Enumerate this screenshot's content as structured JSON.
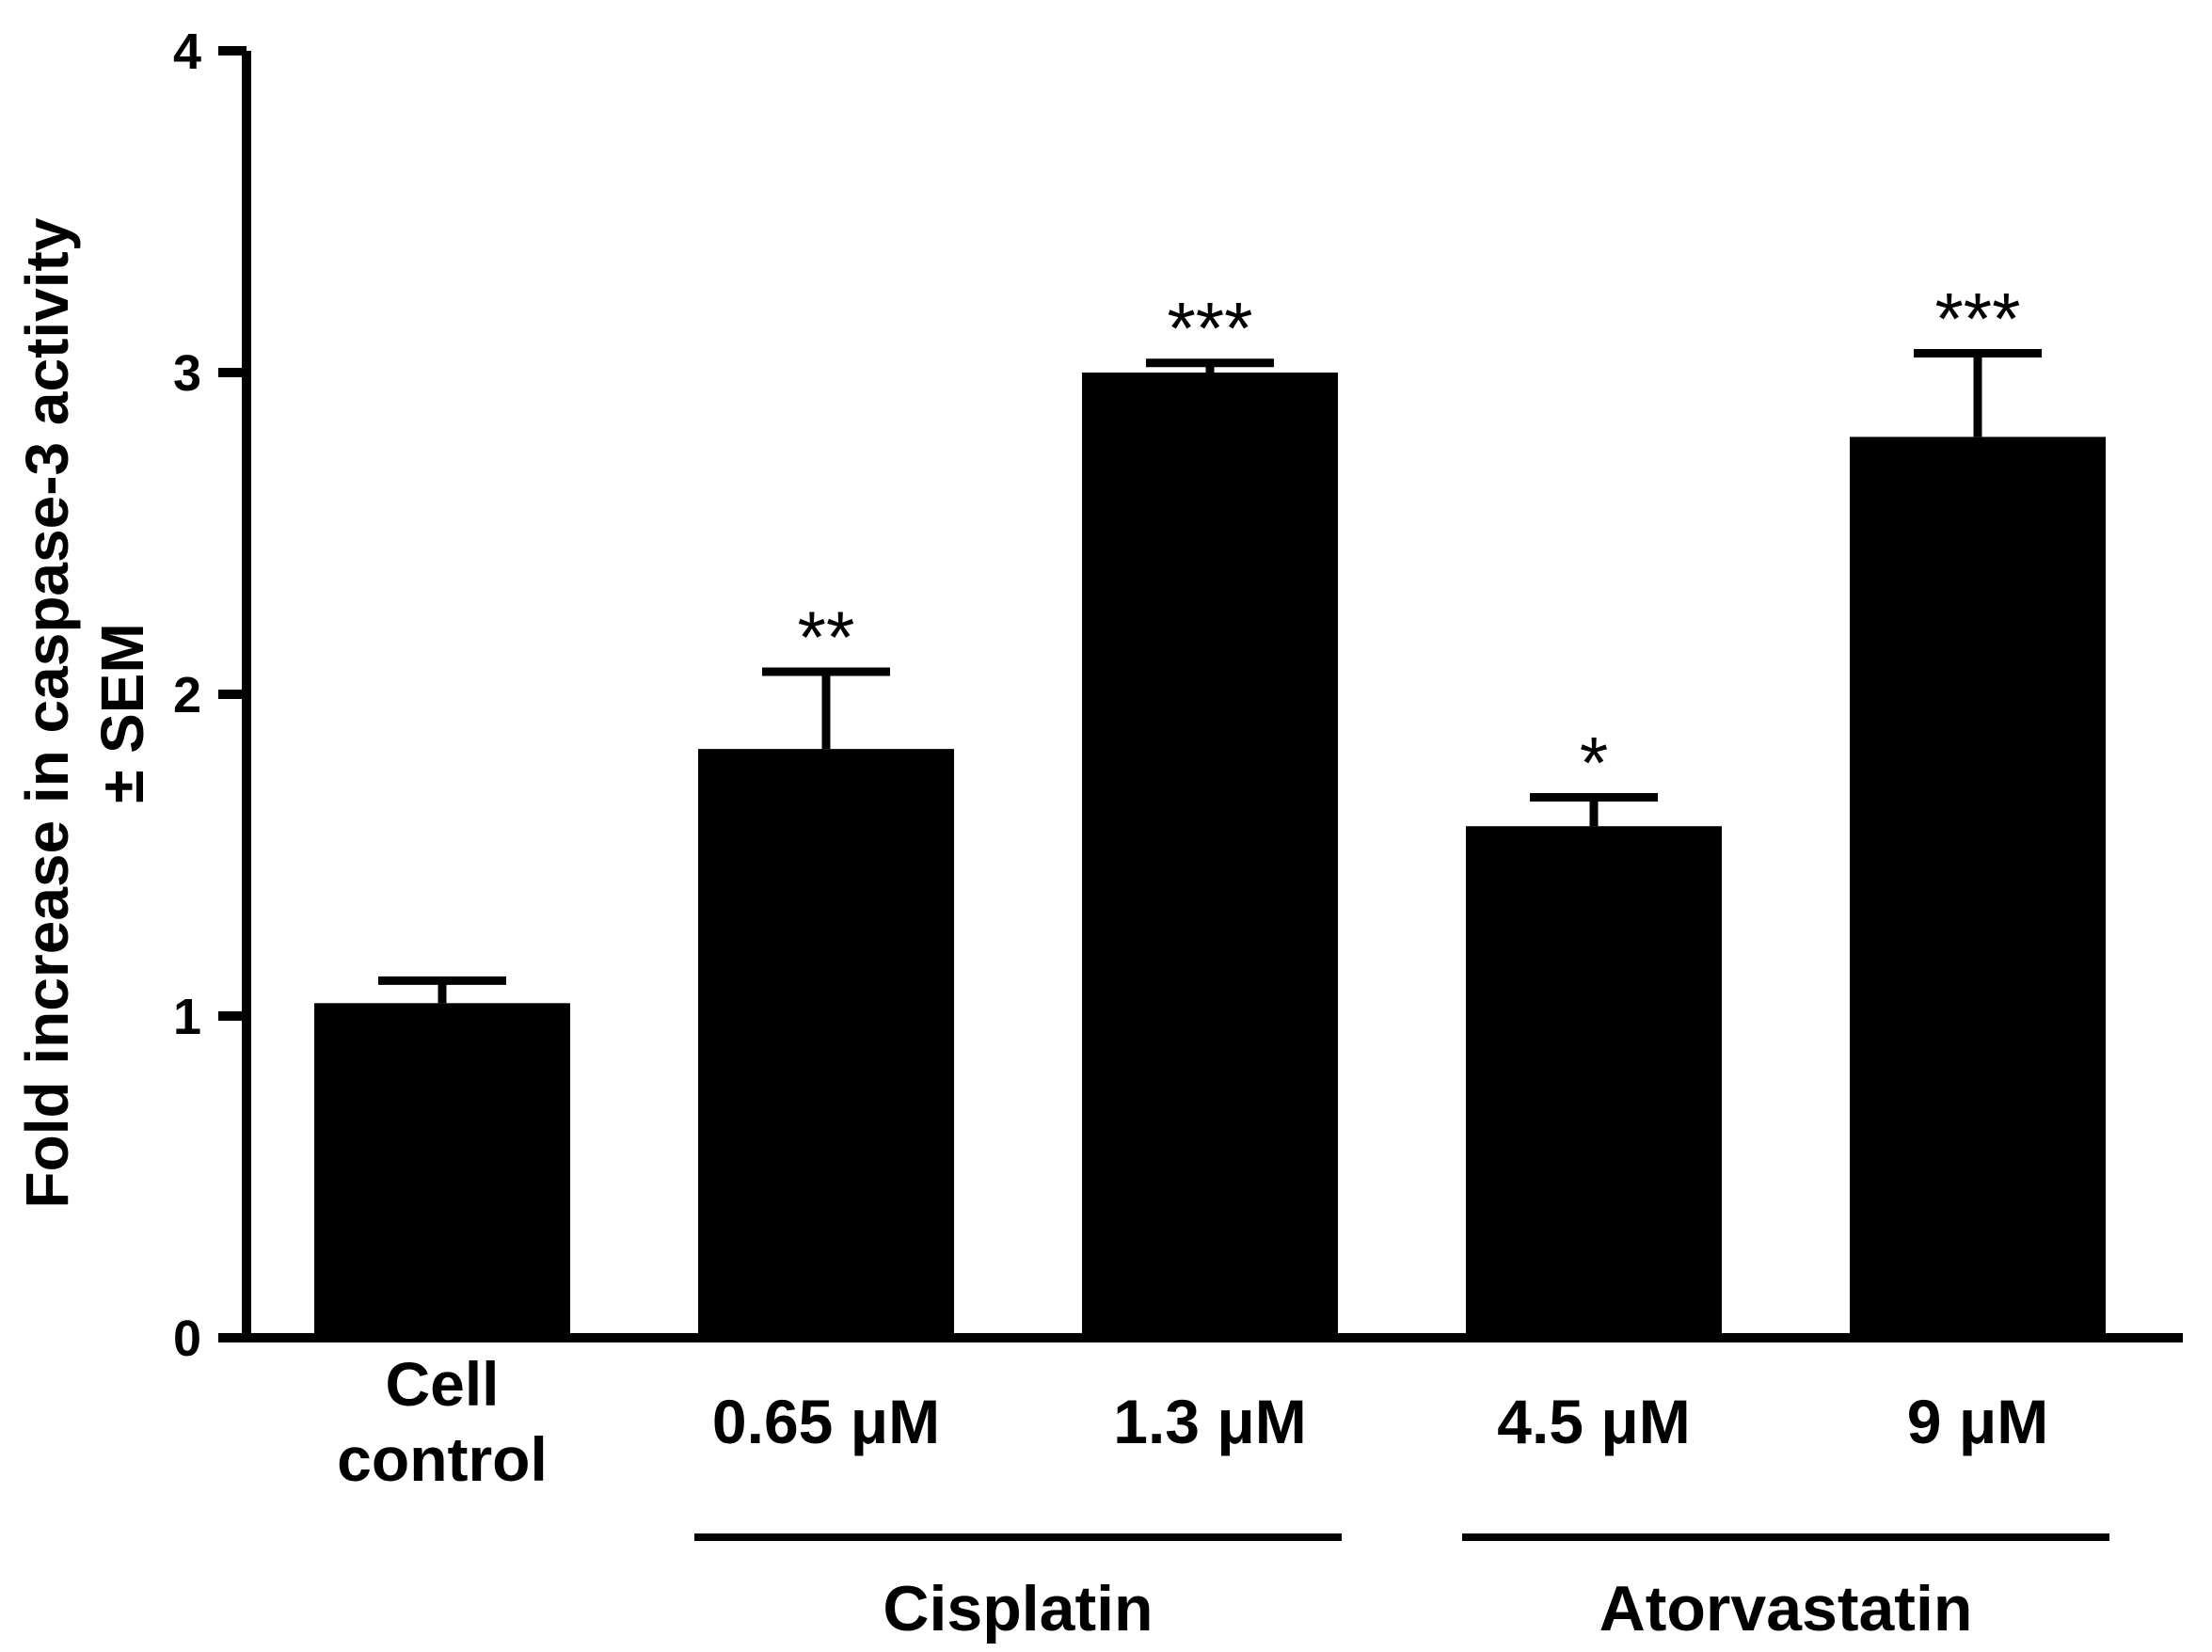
{
  "chart_data": {
    "type": "bar",
    "title": "",
    "xlabel": "",
    "ylabel_lines": [
      "Fold increase in caspase-3 activity",
      "± SEM"
    ],
    "ylim": [
      0,
      4
    ],
    "yticks": [
      0,
      1,
      2,
      3,
      4
    ],
    "grid": false,
    "legend": "none",
    "categories": [
      {
        "lines": [
          "Cell",
          "control"
        ]
      },
      {
        "lines": [
          "0.65 μM"
        ]
      },
      {
        "lines": [
          "1.3 μM"
        ]
      },
      {
        "lines": [
          "4.5 μM"
        ]
      },
      {
        "lines": [
          "9 μM"
        ]
      }
    ],
    "values": [
      1.04,
      1.83,
      3.0,
      1.59,
      2.8
    ],
    "errors": [
      0.07,
      0.24,
      0.03,
      0.09,
      0.26
    ],
    "significance": [
      "",
      "**",
      "***",
      "*",
      "***"
    ],
    "groups": [
      {
        "label": "Cisplatin",
        "start_index": 1,
        "end_index": 2
      },
      {
        "label": "Atorvastatin",
        "start_index": 3,
        "end_index": 4
      }
    ],
    "colors": {
      "bar": "#000000",
      "axis": "#000000",
      "background": "#ffffff"
    }
  }
}
